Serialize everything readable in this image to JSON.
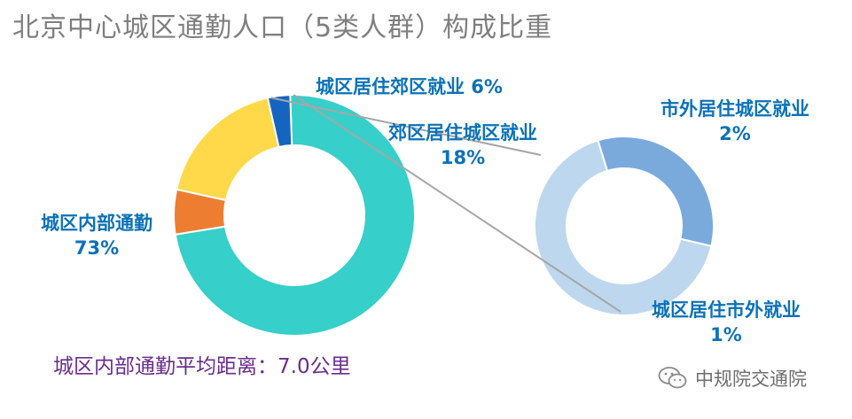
{
  "title": "北京中心城区通勤人口（5类人群）构成比重",
  "chart_data": [
    {
      "type": "pie",
      "style": "donut",
      "slices": [
        {
          "label": "城区内部通勤",
          "value": 73,
          "value_label": "73%",
          "color": "#36cfc9"
        },
        {
          "label": "城区居住郊区就业",
          "value": 6,
          "value_label": "6%",
          "color": "#ed7d31"
        },
        {
          "label": "郊区居住城区就业",
          "value": 18,
          "value_label": "18%",
          "color": "#ffd94a"
        },
        {
          "label": "城区居住市外就业 + 市外居住城区就业",
          "value": 3,
          "value_label": "",
          "color": "#1565c0"
        }
      ]
    },
    {
      "type": "pie",
      "style": "donut",
      "slices": [
        {
          "label": "市外居住城区就业",
          "value": 2,
          "value_label": "2%",
          "color": "#bdd7ee"
        },
        {
          "label": "城区居住市外就业",
          "value": 1,
          "value_label": "1%",
          "color": "#7aaadc"
        }
      ]
    }
  ],
  "labels": {
    "internal": {
      "name": "城区内部通勤",
      "pct": "73%"
    },
    "city_to_suburb": {
      "text": "城区居住郊区就业 6%"
    },
    "suburb_to_city": {
      "name": "郊区居住城区就业",
      "pct": "18%"
    },
    "outside_to_city": {
      "name": "市外居住城区就业",
      "pct": "2%"
    },
    "city_to_outside": {
      "name": "城区居住市外就业",
      "pct": "1%"
    }
  },
  "note": "城区内部通勤平均距离：7.0公里",
  "brand": {
    "name": "中规院交通院",
    "icon": "wechat-icon"
  }
}
